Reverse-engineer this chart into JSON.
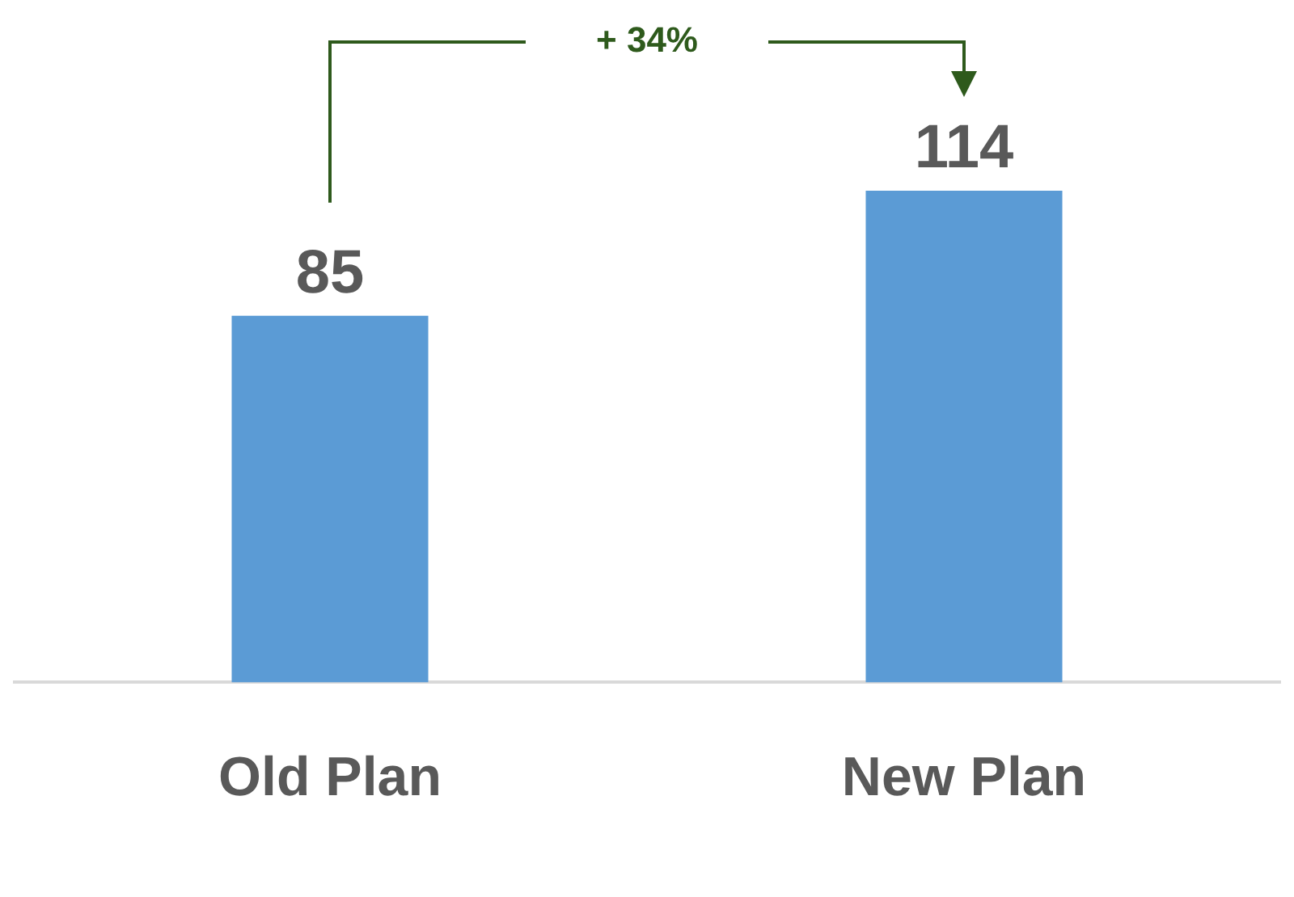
{
  "chart_data": {
    "type": "bar",
    "categories": [
      "Old Plan",
      "New Plan"
    ],
    "values": [
      85,
      114
    ],
    "color": "#5b9bd5",
    "data_labels": true,
    "grid": false,
    "legend": false,
    "annotations": [
      "+ 34%"
    ]
  }
}
